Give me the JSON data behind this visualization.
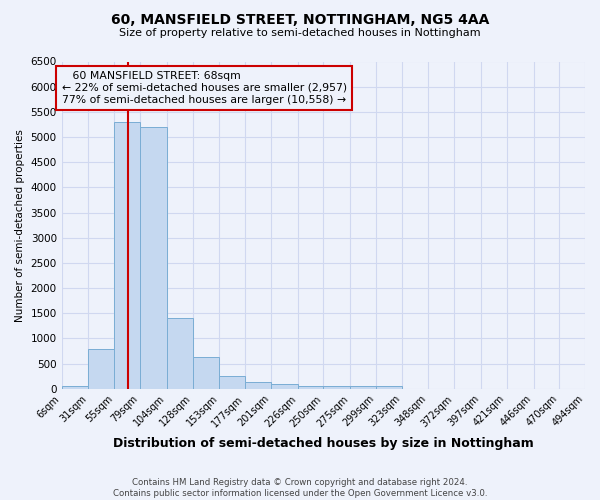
{
  "title1": "60, MANSFIELD STREET, NOTTINGHAM, NG5 4AA",
  "title2": "Size of property relative to semi-detached houses in Nottingham",
  "xlabel": "Distribution of semi-detached houses by size in Nottingham",
  "ylabel": "Number of semi-detached properties",
  "footnote": "Contains HM Land Registry data © Crown copyright and database right 2024.\nContains public sector information licensed under the Open Government Licence v3.0.",
  "bin_labels": [
    "6sqm",
    "31sqm",
    "55sqm",
    "79sqm",
    "104sqm",
    "128sqm",
    "153sqm",
    "177sqm",
    "201sqm",
    "226sqm",
    "250sqm",
    "275sqm",
    "299sqm",
    "323sqm",
    "348sqm",
    "372sqm",
    "397sqm",
    "421sqm",
    "446sqm",
    "470sqm",
    "494sqm"
  ],
  "bin_edges": [
    6,
    31,
    55,
    79,
    104,
    128,
    153,
    177,
    201,
    226,
    250,
    275,
    299,
    323,
    348,
    372,
    397,
    421,
    446,
    470,
    494
  ],
  "bar_heights": [
    55,
    800,
    5300,
    5200,
    1400,
    640,
    260,
    140,
    105,
    60,
    50,
    55,
    55,
    0,
    0,
    0,
    0,
    0,
    0,
    0
  ],
  "bar_color": "#c5d8f0",
  "bar_edge_color": "#7aadd4",
  "property_size": 68,
  "property_label": "60 MANSFIELD STREET: 68sqm",
  "pct_smaller": 22,
  "n_smaller": 2957,
  "pct_larger": 77,
  "n_larger": 10558,
  "vline_color": "#cc0000",
  "annotation_box_color": "#cc0000",
  "ylim": [
    0,
    6500
  ],
  "background_color": "#eef2fb",
  "grid_color": "#d0d8f0",
  "ann_box_title_center": true
}
